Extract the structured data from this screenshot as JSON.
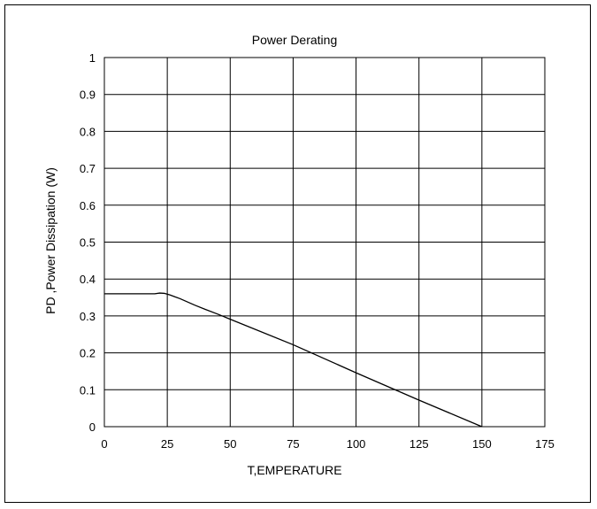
{
  "chart_data": {
    "type": "line",
    "title": "Power Derating",
    "xlabel": "T,EMPERATURE",
    "ylabel": "PD ,Power Dissipation (W)",
    "xlim": [
      0,
      175
    ],
    "ylim": [
      0,
      1
    ],
    "xticks": [
      "0",
      "25",
      "50",
      "75",
      "100",
      "125",
      "150",
      "175"
    ],
    "yticks": [
      "0",
      "0.1",
      "0.2",
      "0.3",
      "0.4",
      "0.5",
      "0.6",
      "0.7",
      "0.8",
      "0.9",
      "1"
    ],
    "grid": true,
    "series": [
      {
        "x": [
          0,
          20,
          22,
          24,
          26,
          28,
          30,
          32,
          34,
          36,
          40,
          45,
          50,
          75,
          100,
          125,
          150
        ],
        "y": [
          0.36,
          0.36,
          0.362,
          0.361,
          0.357,
          0.352,
          0.347,
          0.341,
          0.335,
          0.329,
          0.318,
          0.305,
          0.291,
          0.222,
          0.146,
          0.072,
          0.0
        ]
      }
    ]
  }
}
